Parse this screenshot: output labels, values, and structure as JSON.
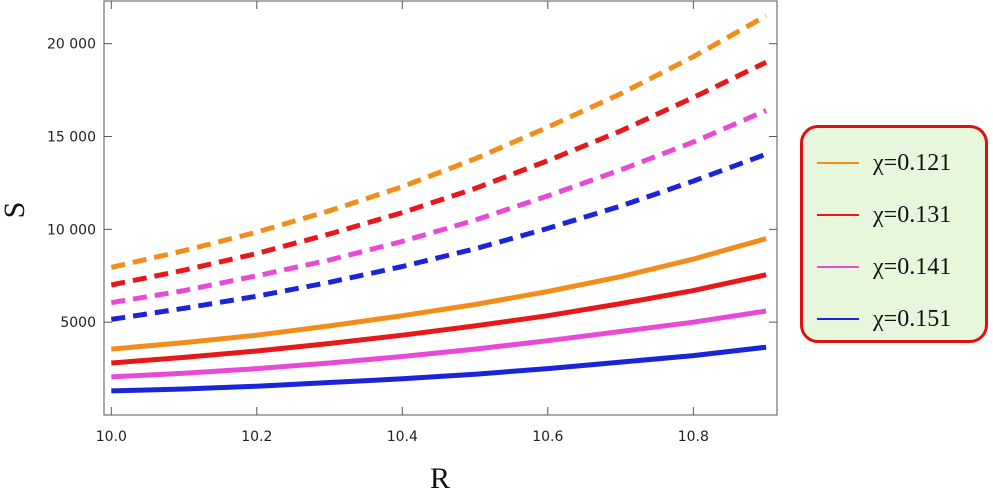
{
  "chart_data": {
    "type": "line",
    "title": "",
    "xlabel": "R",
    "ylabel": "S",
    "xlim": [
      9.99,
      10.915
    ],
    "ylim": [
      0,
      22300
    ],
    "grid": false,
    "legend_position": "right",
    "xticks": [
      10.0,
      10.2,
      10.4,
      10.6,
      10.8
    ],
    "xtick_labels": [
      "10.0",
      "10.2",
      "10.4",
      "10.6",
      "10.8"
    ],
    "yticks": [
      5000,
      10000,
      15000,
      20000
    ],
    "ytick_labels": [
      "5000",
      "10 000",
      "15 000",
      "20 000"
    ],
    "x": [
      10.0,
      10.1,
      10.2,
      10.3,
      10.4,
      10.5,
      10.6,
      10.7,
      10.8,
      10.9
    ],
    "series": [
      {
        "name": "χ=0.121",
        "color": "#f28c1a",
        "style": "dashed",
        "values": [
          7950,
          8850,
          9850,
          11000,
          12300,
          13800,
          15500,
          17300,
          19300,
          21500
        ]
      },
      {
        "name": "χ=0.131",
        "color": "#e8171a",
        "style": "dashed",
        "values": [
          7000,
          7800,
          8700,
          9750,
          10900,
          12200,
          13700,
          15300,
          17100,
          19000
        ]
      },
      {
        "name": "χ=0.141",
        "color": "#e64ad6",
        "style": "dashed",
        "values": [
          6050,
          6700,
          7500,
          8350,
          9350,
          10500,
          11800,
          13200,
          14700,
          16400
        ]
      },
      {
        "name": "χ=0.151",
        "color": "#1a24d9",
        "style": "dashed",
        "values": [
          5150,
          5750,
          6400,
          7150,
          8000,
          8950,
          10050,
          11250,
          12600,
          14050
        ]
      },
      {
        "name": "χ=0.121",
        "color": "#f28c1a",
        "style": "solid",
        "values": [
          3550,
          3900,
          4300,
          4800,
          5350,
          5950,
          6650,
          7450,
          8400,
          9500
        ]
      },
      {
        "name": "χ=0.131",
        "color": "#e8171a",
        "style": "solid",
        "values": [
          2800,
          3100,
          3450,
          3850,
          4300,
          4800,
          5350,
          6000,
          6700,
          7550
        ]
      },
      {
        "name": "χ=0.141",
        "color": "#e64ad6",
        "style": "solid",
        "values": [
          2050,
          2250,
          2500,
          2800,
          3150,
          3550,
          4000,
          4500,
          5000,
          5600
        ]
      },
      {
        "name": "χ=0.151",
        "color": "#1a24d9",
        "style": "solid",
        "values": [
          1300,
          1400,
          1550,
          1750,
          1950,
          2200,
          2500,
          2850,
          3200,
          3650
        ]
      }
    ]
  },
  "legend": {
    "items": [
      {
        "label": "χ=0.121",
        "color": "#f28c1a"
      },
      {
        "label": "χ=0.131",
        "color": "#e8171a"
      },
      {
        "label": "χ=0.141",
        "color": "#e64ad6"
      },
      {
        "label": "χ=0.151",
        "color": "#1a24d9"
      }
    ]
  }
}
